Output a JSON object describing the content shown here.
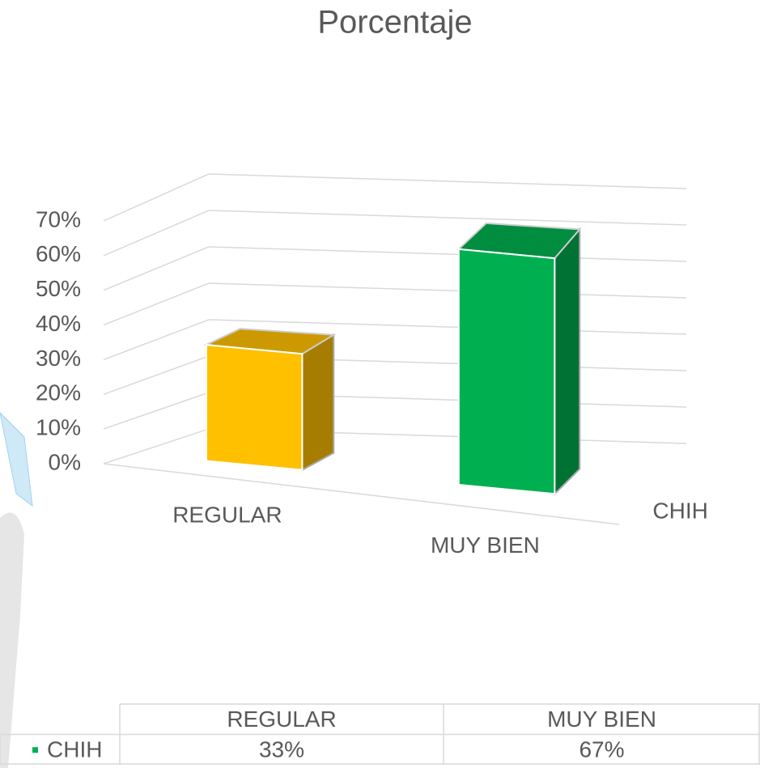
{
  "chart_data": {
    "type": "bar3d",
    "title": "Porcentaje",
    "categories": [
      "REGULAR",
      "MUY BIEN"
    ],
    "series": [
      {
        "name": "CHIH",
        "color": "#00B050",
        "point_colors": [
          "#FFC000",
          "#00B050"
        ],
        "values": [
          33,
          67
        ],
        "value_labels": [
          "33%",
          "67%"
        ]
      }
    ],
    "ylim": [
      0,
      70
    ],
    "yticks": [
      {
        "value": 0,
        "label": "0%"
      },
      {
        "value": 10,
        "label": "10%"
      },
      {
        "value": 20,
        "label": "20%"
      },
      {
        "value": 30,
        "label": "30%"
      },
      {
        "value": 40,
        "label": "40%"
      },
      {
        "value": 50,
        "label": "50%"
      },
      {
        "value": 60,
        "label": "60%"
      },
      {
        "value": 70,
        "label": "70%"
      }
    ],
    "grid": true,
    "data_table": true
  }
}
